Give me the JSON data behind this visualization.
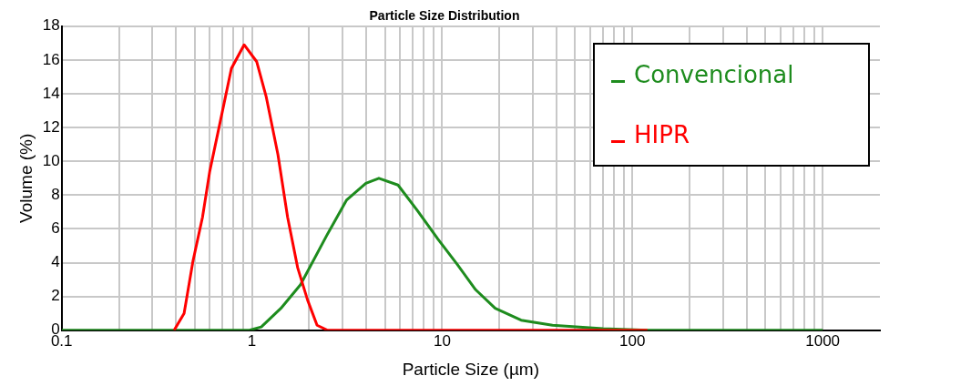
{
  "chart_data": {
    "type": "line",
    "title": "Particle Size Distribution",
    "xlabel": "Particle Size (µm)",
    "ylabel": "Volume (%)",
    "log": "x",
    "xlim": [
      0.1,
      2000
    ],
    "ylim": [
      0,
      18
    ],
    "xticks": [
      0.1,
      {
        "value": 0.2,
        "label": null
      },
      {
        "value": 0.3,
        "label": null
      },
      {
        "value": 0.4,
        "label": null
      },
      {
        "value": 0.5,
        "label": null
      },
      {
        "value": 0.6,
        "label": null
      },
      {
        "value": 0.7,
        "label": null
      },
      {
        "value": 0.8,
        "label": null
      },
      {
        "value": 0.9,
        "label": null
      },
      1,
      {
        "value": 2,
        "label": null
      },
      {
        "value": 3,
        "label": null
      },
      {
        "value": 4,
        "label": null
      },
      {
        "value": 5,
        "label": null
      },
      {
        "value": 6,
        "label": null
      },
      {
        "value": 7,
        "label": null
      },
      {
        "value": 8,
        "label": null
      },
      {
        "value": 9,
        "label": null
      },
      10,
      {
        "value": 20,
        "label": null
      },
      {
        "value": 30,
        "label": null
      },
      {
        "value": 40,
        "label": null
      },
      {
        "value": 50,
        "label": null
      },
      {
        "value": 60,
        "label": null
      },
      {
        "value": 70,
        "label": null
      },
      {
        "value": 80,
        "label": null
      },
      {
        "value": 90,
        "label": null
      },
      100,
      {
        "value": 200,
        "label": null
      },
      {
        "value": 300,
        "label": null
      },
      {
        "value": 400,
        "label": null
      },
      {
        "value": 500,
        "label": null
      },
      {
        "value": 600,
        "label": null
      },
      {
        "value": 700,
        "label": null
      },
      {
        "value": 800,
        "label": null
      },
      {
        "value": 900,
        "label": null
      },
      1000
    ],
    "yticks": [
      0,
      2,
      4,
      6,
      8,
      10,
      12,
      14,
      16,
      18
    ],
    "grid": true,
    "legend": "top right",
    "marker": "none",
    "line_style": "solid",
    "series": [
      {
        "name": "Convencional",
        "color": "#1e8c1e",
        "x": [
          0.1,
          0.5,
          0.97,
          1.12,
          1.42,
          1.8,
          2.47,
          3.14,
          3.97,
          4.65,
          5.86,
          7.4,
          9.5,
          12,
          15,
          19,
          26,
          38,
          70,
          120,
          1000
        ],
        "values": [
          0,
          0,
          0,
          0.2,
          1.3,
          2.7,
          5.6,
          7.7,
          8.7,
          9,
          8.6,
          7.1,
          5.4,
          3.9,
          2.4,
          1.3,
          0.6,
          0.3,
          0.1,
          0,
          0
        ]
      },
      {
        "name": "HIPR",
        "color": "#ff0000",
        "x": [
          0.39,
          0.44,
          0.49,
          0.55,
          0.6,
          0.68,
          0.78,
          0.91,
          1.06,
          1.19,
          1.37,
          1.54,
          1.74,
          1.96,
          2.2,
          2.5,
          10,
          120
        ],
        "values": [
          0,
          1,
          4.1,
          6.7,
          9.4,
          12.3,
          15.5,
          16.9,
          15.9,
          13.8,
          10.4,
          6.7,
          3.7,
          1.8,
          0.3,
          0,
          0,
          0
        ]
      }
    ]
  }
}
